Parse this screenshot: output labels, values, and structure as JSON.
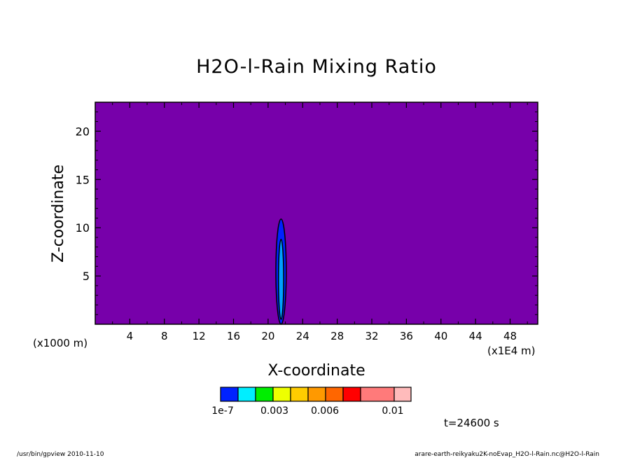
{
  "chart_data": {
    "type": "heatmap",
    "title": "H2O-l-Rain Mixing Ratio",
    "xlabel": "X-coordinate",
    "ylabel": "Z-coordinate",
    "x_unit": "(x1E4 m)",
    "y_unit": "(x1000 m)",
    "xlim": [
      0,
      51.2
    ],
    "ylim": [
      0,
      23
    ],
    "x_ticks": [
      4,
      8,
      12,
      16,
      20,
      24,
      28,
      32,
      36,
      40,
      44,
      48
    ],
    "y_ticks": [
      5,
      10,
      15,
      20
    ],
    "grid": false,
    "background_value_color": "#7700aa",
    "features": [
      {
        "kind": "plume",
        "x_center": 21.5,
        "z_bottom": 0,
        "z_top": 10.9,
        "half_width": 0.6,
        "color": "#0022ff"
      },
      {
        "kind": "plume",
        "x_center": 21.5,
        "z_bottom": 0.5,
        "z_top": 8.8,
        "half_width": 0.3,
        "color": "#00a0ff"
      }
    ],
    "colorbar": {
      "colors": [
        "#0022ff",
        "#00eeff",
        "#00ee00",
        "#eeff00",
        "#ffcc00",
        "#ff9900",
        "#ff6600",
        "#ff0000",
        "#ff7a7a",
        "#ffbbbb"
      ],
      "labels": [
        "1e-7",
        "0.003",
        "0.006",
        "0.01"
      ]
    }
  },
  "annotations": {
    "time": "t=24600 s",
    "footer_left": "/usr/bin/gpview   2010-11-10",
    "footer_right": "arare-earth-reikyaku2K-noEvap_H2O-l-Rain.nc@H2O-l-Rain"
  }
}
